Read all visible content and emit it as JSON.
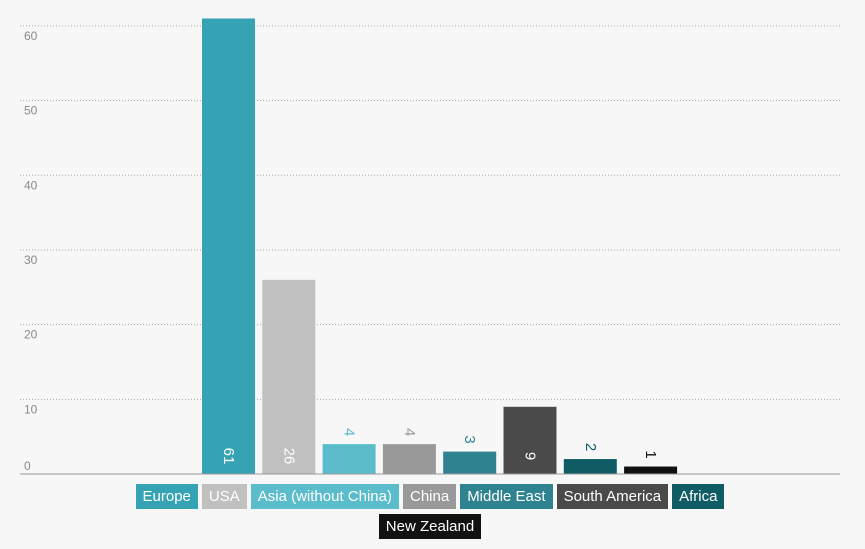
{
  "chart_data": {
    "type": "bar",
    "categories": [
      "Europe",
      "USA",
      "Asia (without China)",
      "China",
      "Middle East",
      "South America",
      "Africa",
      "New Zealand"
    ],
    "values": [
      61,
      26,
      4,
      4,
      3,
      9,
      2,
      1
    ],
    "value_labels": [
      "61",
      "26",
      "4",
      "4",
      "3",
      "9",
      "2",
      "1"
    ],
    "colors": [
      "#36a3b5",
      "#c0c0c0",
      "#5bbccb",
      "#999999",
      "#2f8290",
      "#4a4a4a",
      "#0f5c64",
      "#111111"
    ],
    "y_ticks": [
      "0",
      "10",
      "20",
      "30",
      "40",
      "50",
      "60"
    ],
    "ylim": [
      0,
      62
    ],
    "grid": true,
    "legend_position": "bottom",
    "title": "",
    "xlabel": "",
    "ylabel": ""
  }
}
